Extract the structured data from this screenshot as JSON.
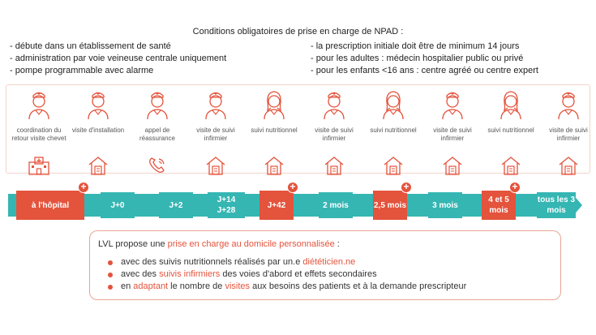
{
  "title": "Conditions obligatoires de prise en charge de NPAD :",
  "conditions_left": [
    "- débute dans un établissement de santé",
    "- administration par voie veineuse centrale uniquement",
    "- pompe programmable avec alarme"
  ],
  "conditions_right": [
    "- la prescription initiale doit être de minimum 14 jours",
    "- pour les adultes : médecin hospitalier public ou privé",
    "- pour les enfants <16 ans : centre agréé ou centre expert"
  ],
  "columns": [
    {
      "label": "coordination du retour visite chevet",
      "person": "nurse-icon",
      "place": "hospital-icon"
    },
    {
      "label": "visite d'installation",
      "person": "nurse-icon",
      "place": "home-icon"
    },
    {
      "label": "appel de réassurance",
      "person": "nurse-icon",
      "place": "phone-icon"
    },
    {
      "label": "visite de suivi infirmier",
      "person": "nurse-icon",
      "place": "home-icon"
    },
    {
      "label": "suivi nutritionnel",
      "person": "dietitian-icon",
      "place": "home-icon"
    },
    {
      "label": "visite de suivi infirmier",
      "person": "nurse-icon",
      "place": "home-icon"
    },
    {
      "label": "suivi nutritionnel",
      "person": "dietitian-icon",
      "place": "home-icon"
    },
    {
      "label": "visite de suivi infirmier",
      "person": "nurse-icon",
      "place": "home-icon"
    },
    {
      "label": "suivi nutritionnel",
      "person": "dietitian-icon",
      "place": "home-icon"
    },
    {
      "label": "visite de suivi infirmier",
      "person": "nurse-icon",
      "place": "home-icon"
    }
  ],
  "timeline": [
    {
      "label": "à l'hôpital",
      "color": "red",
      "plus": true
    },
    {
      "label": "J+0",
      "color": "teal",
      "plus": false
    },
    {
      "label": "J+2",
      "color": "teal",
      "plus": false
    },
    {
      "label": "J+14 J+28",
      "color": "teal",
      "plus": false
    },
    {
      "label": "J+42",
      "color": "red",
      "plus": true
    },
    {
      "label": "2 mois",
      "color": "teal",
      "plus": false
    },
    {
      "label": "2,5 mois",
      "color": "red",
      "plus": true
    },
    {
      "label": "3 mois",
      "color": "teal",
      "plus": false
    },
    {
      "label": "4 et 5 mois",
      "color": "red",
      "plus": true
    },
    {
      "label": "tous les 3 mois",
      "color": "teal",
      "plus": false
    }
  ],
  "info": {
    "lead_prefix": "LVL propose une ",
    "lead_highlight": "prise en charge au domicile personnalisée",
    "lead_suffix": " :",
    "bullets": [
      {
        "a": "avec des suivis nutritionnels réalisés par un.e ",
        "b": "diététicien.ne",
        "c": "",
        "d": "",
        "e": ""
      },
      {
        "a": "avec des ",
        "b": "suivis infirmiers",
        "c": " des voies d'abord et effets secondaires",
        "d": "",
        "e": ""
      },
      {
        "a": "en ",
        "b": "adaptant",
        "c": " le nombre de ",
        "d": "visites",
        "e": " aux besoins des patients et à la demande prescripteur"
      }
    ]
  },
  "colors": {
    "accent": "#e4533c",
    "teal": "#35b6b3",
    "border": "#e9a596"
  }
}
